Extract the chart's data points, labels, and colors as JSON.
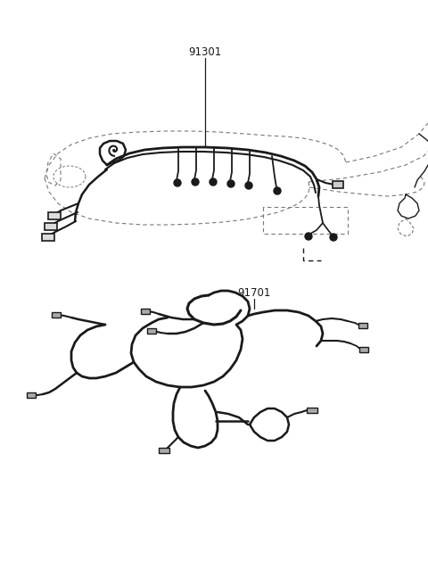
{
  "background_color": "#ffffff",
  "label_91301": "91301",
  "label_91701": "91701",
  "line_color": "#1a1a1a",
  "dashed_color": "#777777",
  "fig_width": 4.8,
  "fig_height": 6.57,
  "dpi": 100
}
